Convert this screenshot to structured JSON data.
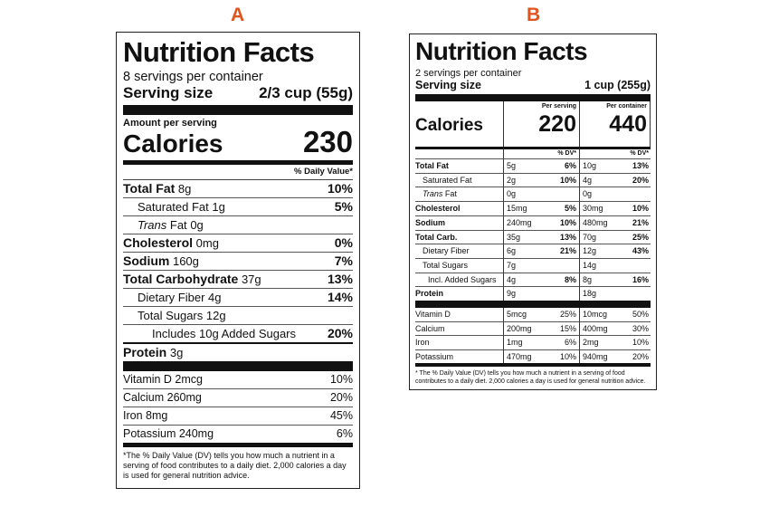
{
  "panel_letters": {
    "a": "A",
    "b": "B"
  },
  "colors": {
    "letter": "#e0531e",
    "ink": "#111111",
    "background": "#ffffff"
  },
  "label_a": {
    "title": "Nutrition Facts",
    "servings": "8 servings per container",
    "serving_size_label": "Serving size",
    "serving_size_value": "2/3 cup (55g)",
    "amount_per_serving": "Amount per serving",
    "calories_label": "Calories",
    "calories_value": "230",
    "dv_header": "% Daily Value*",
    "nutrients": [
      {
        "name": "Total Fat",
        "amount": "8g",
        "dv": "10%"
      },
      {
        "name": "Saturated Fat",
        "amount": "1g",
        "dv": "5%"
      },
      {
        "name_italic": "Trans",
        "name": "Fat",
        "amount": "0g",
        "dv": ""
      },
      {
        "name": "Cholesterol",
        "amount": "0mg",
        "dv": "0%"
      },
      {
        "name": "Sodium",
        "amount": "160g",
        "dv": "7%"
      },
      {
        "name": "Total Carbohydrate",
        "amount": "37g",
        "dv": "13%"
      },
      {
        "name": "Dietary Fiber",
        "amount": "4g",
        "dv": "14%"
      },
      {
        "name": "Total Sugars",
        "amount": "12g",
        "dv": ""
      },
      {
        "name": "Includes 10g Added Sugars",
        "amount": "",
        "dv": "20%"
      },
      {
        "name": "Protein",
        "amount": "3g",
        "dv": ""
      }
    ],
    "vitamins": [
      {
        "name": "Vitamin D 2mcg",
        "dv": "10%"
      },
      {
        "name": "Calcium 260mg",
        "dv": "20%"
      },
      {
        "name": "Iron 8mg",
        "dv": "45%"
      },
      {
        "name": "Potassium 240mg",
        "dv": "6%"
      }
    ],
    "footnote": "*The % Daily Value (DV) tells you how much a nutrient in a serving of food contributes to a daily diet. 2,000 calories a day is used for general nutrition advice."
  },
  "label_b": {
    "title": "Nutrition Facts",
    "servings": "2 servings per container",
    "serving_size_label": "Serving size",
    "serving_size_value": "1 cup (255g)",
    "calories_label": "Calories",
    "per_serving_label": "Per serving",
    "per_container_label": "Per container",
    "calories_serving": "220",
    "calories_container": "440",
    "dv_header": "% DV*",
    "nutrients": [
      {
        "name": "Total Fat",
        "a1": "5g",
        "d1": "6%",
        "a2": "10g",
        "d2": "13%"
      },
      {
        "name": "Saturated Fat",
        "a1": "2g",
        "d1": "10%",
        "a2": "4g",
        "d2": "20%"
      },
      {
        "name_italic": "Trans",
        "name": "Fat",
        "a1": "0g",
        "d1": "",
        "a2": "0g",
        "d2": ""
      },
      {
        "name": "Cholesterol",
        "a1": "15mg",
        "d1": "5%",
        "a2": "30mg",
        "d2": "10%"
      },
      {
        "name": "Sodium",
        "a1": "240mg",
        "d1": "10%",
        "a2": "480mg",
        "d2": "21%"
      },
      {
        "name": "Total Carb.",
        "a1": "35g",
        "d1": "13%",
        "a2": "70g",
        "d2": "25%"
      },
      {
        "name": "Dietary Fiber",
        "a1": "6g",
        "d1": "21%",
        "a2": "12g",
        "d2": "43%"
      },
      {
        "name": "Total Sugars",
        "a1": "7g",
        "d1": "",
        "a2": "14g",
        "d2": ""
      },
      {
        "name": "Incl. Added Sugars",
        "a1": "4g",
        "d1": "8%",
        "a2": "8g",
        "d2": "16%"
      },
      {
        "name": "Protein",
        "a1": "9g",
        "d1": "",
        "a2": "18g",
        "d2": ""
      }
    ],
    "vitamins": [
      {
        "name": "Vitamin D",
        "a1": "5mcg",
        "d1": "25%",
        "a2": "10mcg",
        "d2": "50%"
      },
      {
        "name": "Calcium",
        "a1": "200mg",
        "d1": "15%",
        "a2": "400mg",
        "d2": "30%"
      },
      {
        "name": "Iron",
        "a1": "1mg",
        "d1": "6%",
        "a2": "2mg",
        "d2": "10%"
      },
      {
        "name": "Potassium",
        "a1": "470mg",
        "d1": "10%",
        "a2": "940mg",
        "d2": "20%"
      }
    ],
    "footnote": "* The % Daily Value (DV) tells you how much a nutrient in a serving of food contributes to a daily diet. 2,000 calories a day is used for general nutrition advice."
  }
}
